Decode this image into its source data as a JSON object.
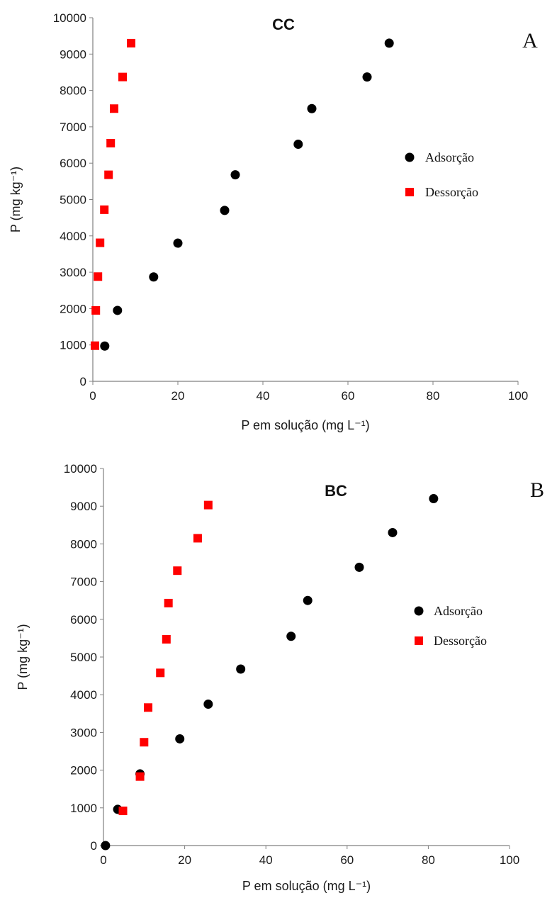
{
  "chart_data": [
    {
      "type": "scatter",
      "title": "CC",
      "panel_label": "A",
      "xlabel": "P em solução (mg L⁻¹)",
      "ylabel": "P (mg kg⁻¹)",
      "xlim": [
        0,
        100
      ],
      "ylim": [
        0,
        10000
      ],
      "xticks": [
        0,
        20,
        40,
        60,
        80,
        100
      ],
      "yticks": [
        0,
        1000,
        2000,
        3000,
        4000,
        5000,
        6000,
        7000,
        8000,
        9000,
        10000
      ],
      "grid": false,
      "legend_position": "right",
      "series": [
        {
          "name": "Adsorção",
          "marker": "circle",
          "color": "#000000",
          "points": [
            [
              2.8,
              970
            ],
            [
              5.8,
              1950
            ],
            [
              14.3,
              2870
            ],
            [
              20.0,
              3800
            ],
            [
              31.0,
              4700
            ],
            [
              33.5,
              5680
            ],
            [
              48.3,
              6520
            ],
            [
              51.5,
              7500
            ],
            [
              64.5,
              8370
            ],
            [
              69.7,
              9300
            ]
          ]
        },
        {
          "name": "Dessorção",
          "marker": "square",
          "color": "#ff0000",
          "points": [
            [
              0.5,
              980
            ],
            [
              0.7,
              1950
            ],
            [
              1.2,
              2880
            ],
            [
              1.7,
              3810
            ],
            [
              2.7,
              4720
            ],
            [
              3.7,
              5680
            ],
            [
              4.2,
              6550
            ],
            [
              5.0,
              7500
            ],
            [
              7.0,
              8370
            ],
            [
              9.0,
              9300
            ]
          ]
        }
      ]
    },
    {
      "type": "scatter",
      "title": "BC",
      "panel_label": "B",
      "xlabel": "P em solução (mg L⁻¹)",
      "ylabel": "P (mg kg⁻¹)",
      "xlim": [
        0,
        100
      ],
      "ylim": [
        0,
        10000
      ],
      "xticks": [
        0,
        20,
        40,
        60,
        80,
        100
      ],
      "yticks": [
        0,
        1000,
        2000,
        3000,
        4000,
        5000,
        6000,
        7000,
        8000,
        9000,
        10000
      ],
      "grid": false,
      "legend_position": "right",
      "series": [
        {
          "name": "Adsorção",
          "marker": "circle",
          "color": "#000000",
          "points": [
            [
              0.5,
              0
            ],
            [
              3.5,
              960
            ],
            [
              9.0,
              1900
            ],
            [
              18.8,
              2830
            ],
            [
              25.8,
              3750
            ],
            [
              33.8,
              4680
            ],
            [
              46.2,
              5550
            ],
            [
              50.3,
              6500
            ],
            [
              63.0,
              7380
            ],
            [
              71.2,
              8300
            ],
            [
              81.3,
              9200
            ]
          ]
        },
        {
          "name": "Dessorção",
          "marker": "square",
          "color": "#ff0000",
          "points": [
            [
              4.8,
              920
            ],
            [
              9.0,
              1830
            ],
            [
              10.0,
              2740
            ],
            [
              11.0,
              3660
            ],
            [
              14.0,
              4580
            ],
            [
              15.5,
              5470
            ],
            [
              16.0,
              6430
            ],
            [
              18.2,
              7290
            ],
            [
              23.2,
              8150
            ],
            [
              25.8,
              9030
            ]
          ]
        }
      ]
    }
  ]
}
